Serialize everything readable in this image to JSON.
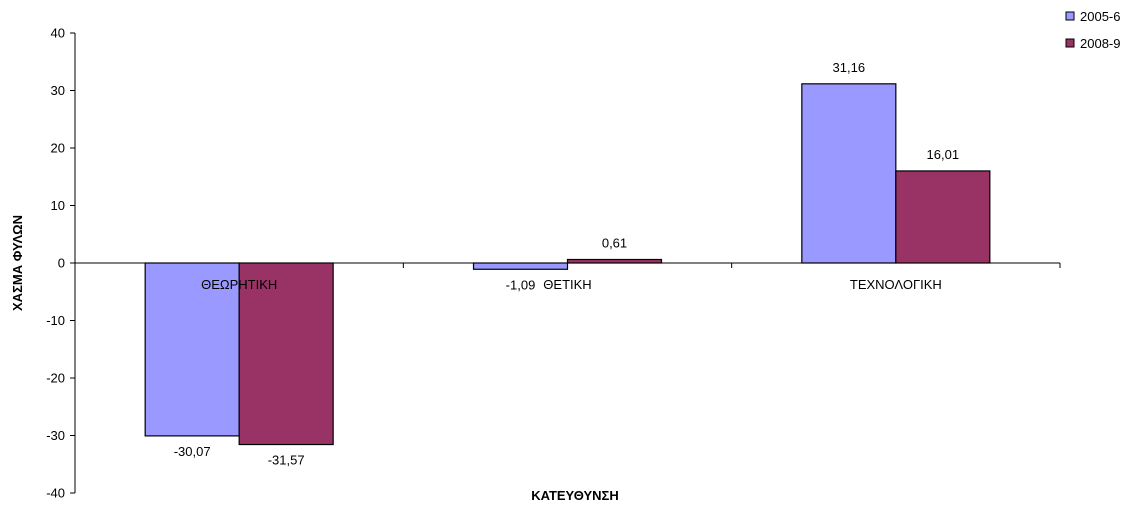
{
  "chart_data": {
    "type": "bar",
    "categories": [
      "ΘΕΩΡΗΤΙΚΗ",
      "ΘΕΤΙΚΗ",
      "ΤΕΧΝΟΛΟΓΙΚΗ"
    ],
    "series": [
      {
        "name": "2005-6",
        "color": "#9999ff",
        "values": [
          -30.07,
          -1.09,
          31.16
        ],
        "labels": [
          "-30,07",
          "-1,09",
          "31,16"
        ]
      },
      {
        "name": "2008-9",
        "color": "#993366",
        "values": [
          -31.57,
          0.61,
          16.01
        ],
        "labels": [
          "-31,57",
          "0,61",
          "16,01"
        ]
      }
    ],
    "title": "",
    "xlabel": "ΚΑΤΕΥΘΥΝΣΗ",
    "ylabel": "ΧΑΣΜΑ ΦΥΛΩΝ",
    "ylim": [
      -40,
      40
    ],
    "yticks": [
      40,
      30,
      20,
      10,
      0,
      -10,
      -20,
      -30,
      -40
    ],
    "grid": false,
    "legend_position": "top-right"
  }
}
